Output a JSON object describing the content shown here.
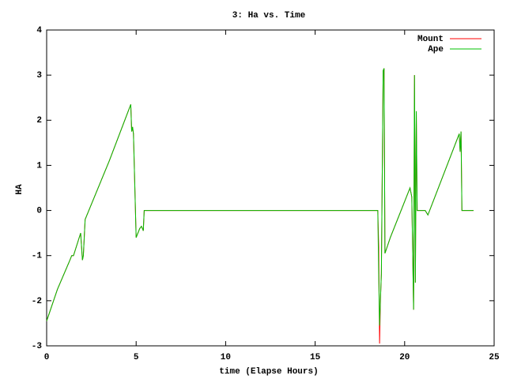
{
  "chart_data": {
    "type": "line",
    "title": "3: Ha vs. Time",
    "xlabel": "time (Elapse Hours)",
    "ylabel": "HA",
    "x": [
      0,
      0.6,
      1.3,
      1.4,
      1.5,
      1.9,
      2.0,
      2.05,
      2.15,
      2.2,
      3.5,
      4.7,
      4.75,
      4.8,
      4.85,
      5.0,
      5.2,
      5.3,
      5.4,
      5.45,
      10,
      15,
      18.5,
      18.55,
      18.6,
      18.65,
      18.7,
      18.8,
      18.85,
      18.9,
      19.2,
      20.3,
      20.4,
      20.5,
      20.55,
      20.6,
      20.65,
      20.7,
      21.15,
      21.3,
      23.05,
      23.1,
      23.15,
      23.2,
      23.85
    ],
    "series": [
      {
        "name": "Mount",
        "color": "#ff0000",
        "values": [
          -2.45,
          -1.75,
          -1.1,
          -1.0,
          -1.0,
          -0.5,
          -1.1,
          -1.0,
          -0.2,
          -0.15,
          1.1,
          2.35,
          1.75,
          1.85,
          1.7,
          -0.6,
          -0.4,
          -0.35,
          -0.45,
          0,
          0,
          0,
          0,
          -0.8,
          -2.95,
          -1.95,
          -1.4,
          3.1,
          3.15,
          -0.95,
          -0.6,
          0.5,
          0.3,
          -2.2,
          3.0,
          -1.6,
          2.2,
          0,
          0,
          -0.1,
          1.7,
          1.3,
          1.75,
          0,
          0
        ]
      },
      {
        "name": "Ape",
        "color": "#00c000",
        "values": [
          -2.45,
          -1.75,
          -1.1,
          -1.0,
          -1.0,
          -0.5,
          -1.1,
          -1.0,
          -0.2,
          -0.15,
          1.1,
          2.35,
          1.75,
          1.85,
          1.7,
          -0.6,
          -0.4,
          -0.35,
          -0.45,
          0,
          0,
          0,
          0,
          -1.4,
          -2.55,
          -1.95,
          -1.4,
          3.1,
          3.15,
          -0.95,
          -0.6,
          0.5,
          0.3,
          -2.2,
          3.0,
          -1.6,
          2.2,
          0,
          0,
          -0.1,
          1.7,
          1.3,
          1.75,
          0,
          0
        ]
      }
    ],
    "xlim": [
      0,
      25
    ],
    "xticks": [
      0,
      5,
      10,
      15,
      20,
      25
    ],
    "ylim": [
      -3,
      4
    ],
    "yticks": [
      -3,
      -2,
      -1,
      0,
      1,
      2,
      3,
      4
    ],
    "legend": "top-right",
    "grid": false
  }
}
